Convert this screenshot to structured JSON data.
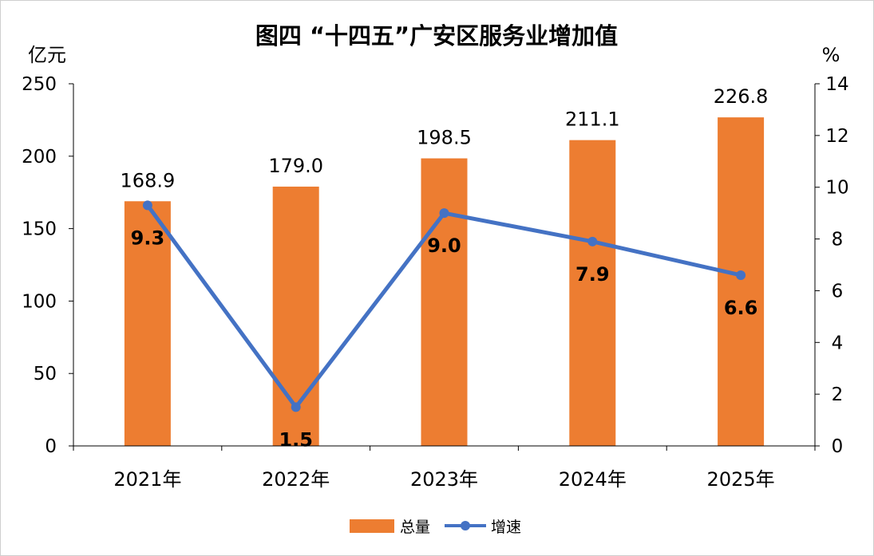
{
  "chart_data": {
    "type": "bar",
    "title": "图四 “十四五”广安区服务业增加值",
    "categories": [
      "2021年",
      "2022年",
      "2023年",
      "2024年",
      "2025年"
    ],
    "series": [
      {
        "name": "总量",
        "type": "bar",
        "axis": "left",
        "values": [
          168.9,
          179.0,
          198.5,
          211.1,
          226.8
        ],
        "labels": [
          "168.9",
          "179.0",
          "198.5",
          "211.1",
          "226.8"
        ]
      },
      {
        "name": "增速",
        "type": "line",
        "axis": "right",
        "values": [
          9.3,
          1.5,
          9.0,
          7.9,
          6.6
        ],
        "labels": [
          "9.3",
          "1.5",
          "9.0",
          "7.9",
          "6.6"
        ]
      }
    ],
    "ylabel_left": "亿元",
    "ylabel_right": "%",
    "ylim_left": [
      0,
      250
    ],
    "yticks_left": [
      "0",
      "50",
      "100",
      "150",
      "200",
      "250"
    ],
    "ylim_right": [
      0,
      14
    ],
    "yticks_right": [
      "0",
      "2",
      "4",
      "6",
      "8",
      "10",
      "12",
      "14"
    ],
    "grid": false,
    "legend_position": "bottom-center",
    "colors": {
      "bar": "#ED7D31",
      "line": "#4472C4",
      "axis": "#000000"
    }
  }
}
